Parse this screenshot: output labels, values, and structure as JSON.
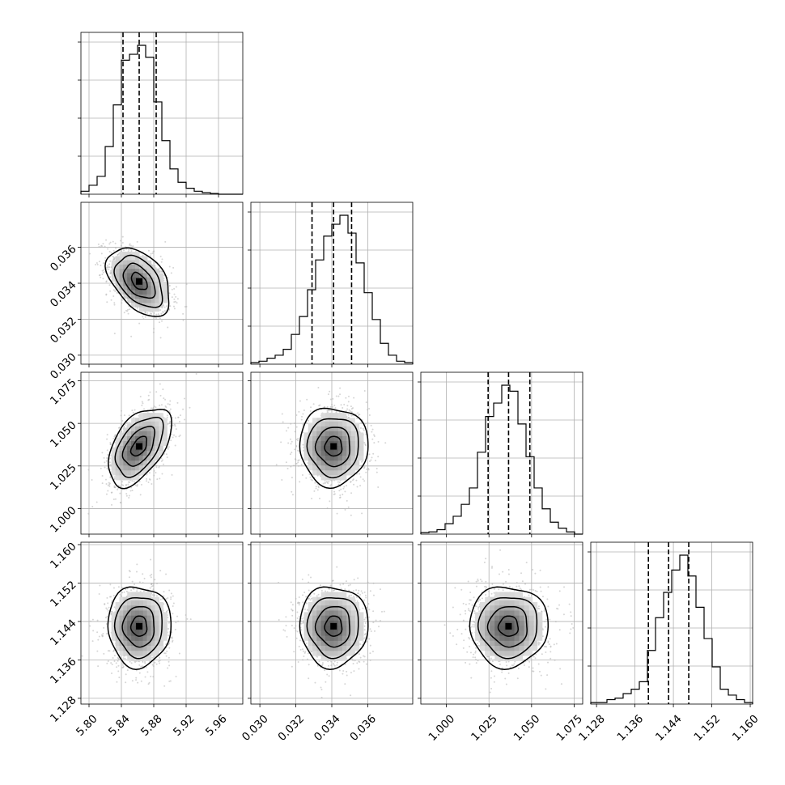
{
  "chart_data": {
    "type": "corner",
    "title": "",
    "grid": true,
    "parameters": [
      {
        "range": [
          5.79,
          5.99
        ],
        "ticks": [
          "5.80",
          "5.84",
          "5.88",
          "5.92",
          "5.96"
        ],
        "tick_values": [
          5.8,
          5.84,
          5.88,
          5.92,
          5.96
        ],
        "mean": 5.862,
        "sd": 0.0195,
        "quantiles": [
          5.842,
          5.862,
          5.883
        ]
      },
      {
        "range": [
          0.0295,
          0.0385
        ],
        "ticks": [
          "0.030",
          "0.032",
          "0.034",
          "0.036"
        ],
        "tick_values": [
          0.03,
          0.032,
          0.034,
          0.036
        ],
        "mean": 0.0341,
        "sd": 0.00095,
        "quantiles": [
          0.0329,
          0.0341,
          0.0351
        ]
      },
      {
        "range": [
          0.985,
          1.08
        ],
        "ticks": [
          "1.000",
          "1.025",
          "1.050",
          "1.075"
        ],
        "tick_values": [
          1.0,
          1.025,
          1.05,
          1.075
        ],
        "mean": 1.0365,
        "sd": 0.0115,
        "quantiles": [
          1.0245,
          1.0365,
          1.049
        ]
      },
      {
        "range": [
          1.1268,
          1.1605
        ],
        "ticks": [
          "1.128",
          "1.136",
          "1.144",
          "1.152",
          "1.160"
        ],
        "tick_values": [
          1.128,
          1.136,
          1.144,
          1.152,
          1.16
        ],
        "mean": 1.143,
        "sd": 0.0042,
        "quantiles": [
          1.1388,
          1.143,
          1.1472
        ]
      }
    ],
    "histograms": [
      [
        0.02,
        0.06,
        0.12,
        0.32,
        0.6,
        0.9,
        0.94,
        1.0,
        0.92,
        0.62,
        0.36,
        0.17,
        0.08,
        0.04,
        0.02,
        0.01,
        0.005,
        0,
        0,
        0
      ],
      [
        0.01,
        0.02,
        0.04,
        0.06,
        0.1,
        0.2,
        0.32,
        0.5,
        0.7,
        0.86,
        0.94,
        1.0,
        0.88,
        0.68,
        0.48,
        0.3,
        0.14,
        0.06,
        0.02,
        0.01
      ],
      [
        0.01,
        0.015,
        0.03,
        0.07,
        0.12,
        0.2,
        0.31,
        0.55,
        0.79,
        0.88,
        1.0,
        0.96,
        0.74,
        0.52,
        0.31,
        0.17,
        0.08,
        0.04,
        0.015,
        0
      ],
      [
        0.01,
        0.01,
        0.03,
        0.04,
        0.07,
        0.1,
        0.15,
        0.36,
        0.58,
        0.75,
        0.9,
        1.0,
        0.86,
        0.65,
        0.44,
        0.25,
        0.1,
        0.06,
        0.03,
        0.01
      ]
    ],
    "correlations": {
      "1-0": -0.45,
      "2-0": 0.5,
      "2-1": 0.0,
      "3-0": 0.0,
      "3-1": 0.0,
      "3-2": 0.0
    },
    "contour_levels_sigma": [
      0.5,
      1.0,
      1.5,
      2.0
    ],
    "colors": {
      "points": "#b4b4b4",
      "lines": "#000000",
      "grid": "#b0b0b0"
    }
  }
}
